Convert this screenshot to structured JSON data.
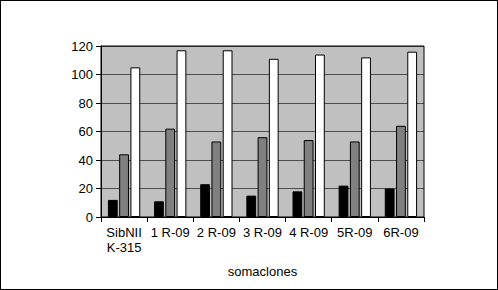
{
  "chart_data": {
    "type": "bar",
    "x_label": "somaclones",
    "categories": [
      "SibNII\nK-315",
      "1 R-09",
      "2 R-09",
      "3 R-09",
      "4 R-09",
      "5R-09",
      "6R-09"
    ],
    "series": [
      {
        "color": "#000000",
        "values": [
          12,
          11,
          23,
          15,
          18,
          22,
          20
        ]
      },
      {
        "color": "#808080",
        "values": [
          44,
          62,
          53,
          56,
          54,
          53,
          64
        ]
      },
      {
        "color": "#ffffff",
        "values": [
          105,
          117,
          117,
          111,
          114,
          112,
          116
        ]
      }
    ],
    "ylim": [
      0,
      120
    ],
    "yticks": [
      0,
      20,
      40,
      60,
      80,
      100,
      120
    ],
    "grid": true
  }
}
